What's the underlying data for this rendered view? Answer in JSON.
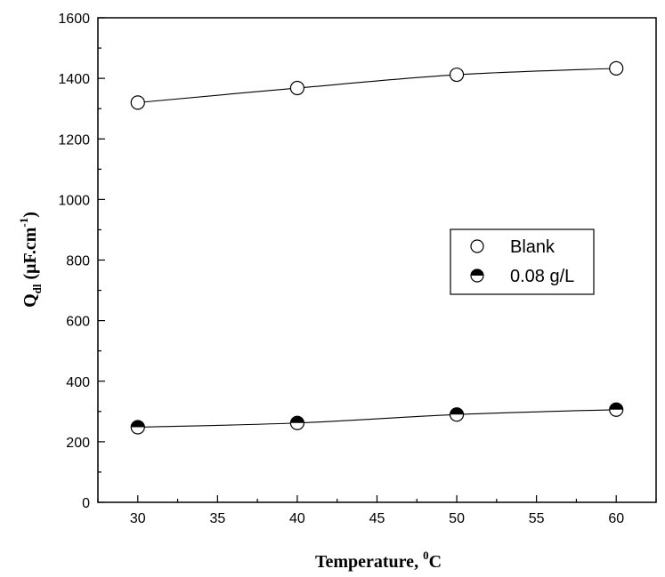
{
  "chart_data": {
    "type": "line",
    "title": "",
    "xlabel": "Temperature, ",
    "xlabel_sup": "0",
    "xlabel_tail": "C",
    "ylabel_main": "Q",
    "ylabel_sub": "dl",
    "ylabel_units": " (μF.cm",
    "ylabel_sup": "-1",
    "ylabel_close": ")",
    "xlim": [
      27.5,
      62.5
    ],
    "ylim": [
      0,
      1600
    ],
    "x_ticks": [
      30,
      35,
      40,
      45,
      50,
      55,
      60
    ],
    "y_ticks": [
      0,
      200,
      400,
      600,
      800,
      1000,
      1200,
      1400,
      1600
    ],
    "x_tick_labels": [
      "30",
      "35",
      "40",
      "45",
      "50",
      "55",
      "60"
    ],
    "y_tick_labels": [
      "0",
      "200",
      "400",
      "600",
      "800",
      "1000",
      "1200",
      "1400",
      "1600"
    ],
    "grid": false,
    "legend_position": "center-right",
    "series": [
      {
        "name": "Blank",
        "marker": "open-circle",
        "x": [
          30,
          40,
          50,
          60
        ],
        "y": [
          1320,
          1368,
          1412,
          1433
        ]
      },
      {
        "name": "0.08 g/L",
        "marker": "half-filled-circle",
        "x": [
          30,
          40,
          50,
          60
        ],
        "y": [
          248,
          262,
          290,
          306
        ]
      }
    ]
  }
}
